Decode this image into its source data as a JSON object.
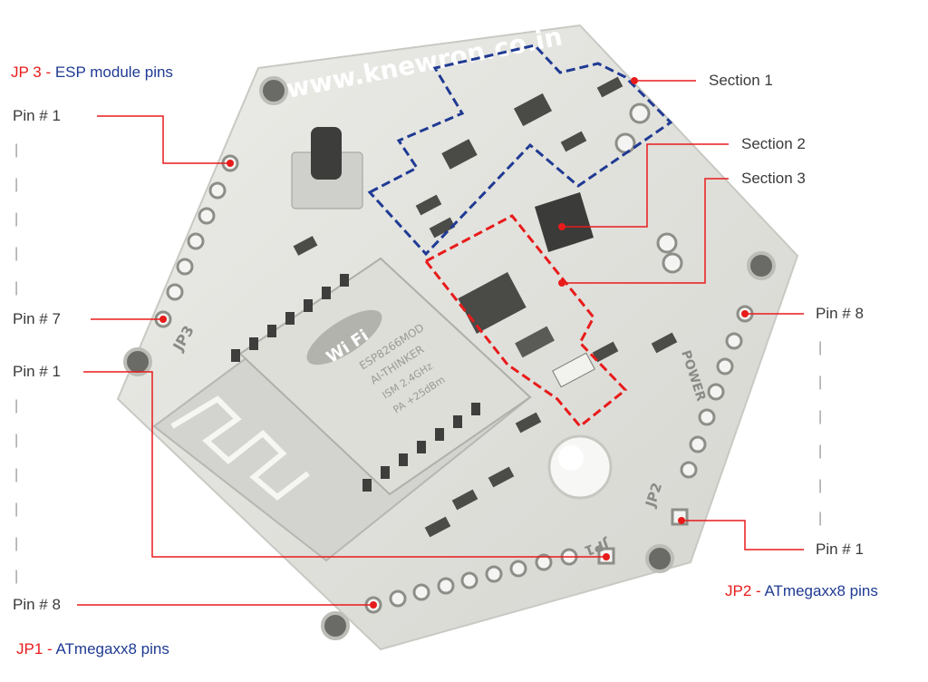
{
  "headers": {
    "jp3": {
      "code": "JP 3",
      "sep": " - ",
      "desc": "ESP module pins"
    },
    "jp1": {
      "code": "JP1",
      "sep": " - ",
      "desc": "ATmegaxx8 pins"
    },
    "jp2": {
      "code": "JP2",
      "sep": " - ",
      "desc": "ATmegaxx8 pins"
    }
  },
  "labels": {
    "jp3_pin1": "Pin # 1",
    "jp3_pin7": "Pin # 7",
    "jp1_pin1": "Pin # 1",
    "jp1_pin8": "Pin # 8",
    "jp2_pin8": "Pin # 8",
    "jp2_pin1": "Pin # 1",
    "section1": "Section 1",
    "section2": "Section 2",
    "section3": "Section 3"
  },
  "board_text": {
    "url": "www.knewron.co.in",
    "wifi": "Wi Fi",
    "module_name": "ESP8266MOD",
    "module_vendor": "AI-THINKER",
    "module_line3": "ISM 2.4GHz",
    "module_line4": "PA +25dBm",
    "jp3": "JP3",
    "jp2": "JP2",
    "jp1": "JP1",
    "power": "POWER"
  },
  "colors": {
    "callout_line": "#e81b1b",
    "section1_border": "#1f3a93",
    "section3_border": "#e81b1b",
    "board": "#e2e2de",
    "divider_dash": "#9a9a9a"
  }
}
